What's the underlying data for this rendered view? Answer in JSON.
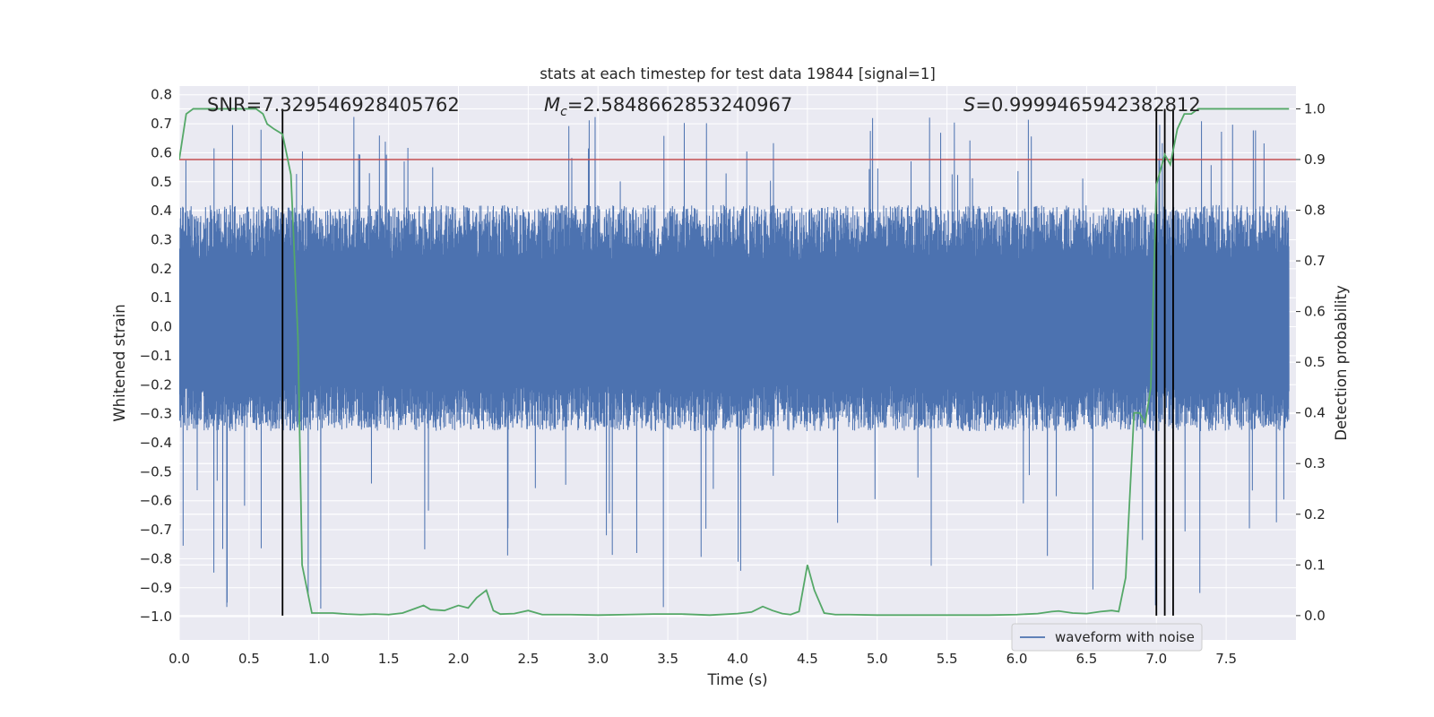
{
  "chart_data": {
    "type": "line",
    "title": "stats at each timestep for test data 19844 [signal=1]",
    "xlabel": "Time (s)",
    "ylabel": "Whitened strain",
    "y2label": "Detection probability",
    "xlim": [
      0,
      8
    ],
    "ylim": [
      -1.08,
      0.83
    ],
    "y2lim": [
      -0.048,
      1.045
    ],
    "xticks": [
      0.0,
      0.5,
      1.0,
      1.5,
      2.0,
      2.5,
      3.0,
      3.5,
      4.0,
      4.5,
      5.0,
      5.5,
      6.0,
      6.5,
      7.0,
      7.5
    ],
    "xtick_labels": [
      "0.0",
      "0.5",
      "1.0",
      "1.5",
      "2.0",
      "2.5",
      "3.0",
      "3.5",
      "4.0",
      "4.5",
      "5.0",
      "5.5",
      "6.0",
      "6.5",
      "7.0",
      "7.5"
    ],
    "yticks": [
      0.8,
      0.7,
      0.6,
      0.5,
      0.4,
      0.3,
      0.2,
      0.1,
      0.0,
      -0.1,
      -0.2,
      -0.3,
      -0.4,
      -0.5,
      -0.6,
      -0.7,
      -0.8,
      -0.9,
      -1.0
    ],
    "ytick_labels": [
      "0.8",
      "0.7",
      "0.6",
      "0.5",
      "0.4",
      "0.3",
      "0.2",
      "0.1",
      "0.0",
      "−0.1",
      "−0.2",
      "−0.3",
      "−0.4",
      "−0.5",
      "−0.6",
      "−0.7",
      "−0.8",
      "−0.9",
      "−1.0"
    ],
    "y2ticks": [
      1.0,
      0.9,
      0.8,
      0.7,
      0.6,
      0.5,
      0.4,
      0.3,
      0.2,
      0.1,
      0.0
    ],
    "y2tick_labels": [
      "1.0",
      "0.9",
      "0.8",
      "0.7",
      "0.6",
      "0.5",
      "0.4",
      "0.3",
      "0.2",
      "0.1",
      "0.0"
    ],
    "grid": true,
    "legend": {
      "position": "lower-right",
      "entries": [
        "waveform with noise"
      ]
    },
    "annotations": {
      "snr": "SNR=7.329546928405762",
      "mc_symbol": "M",
      "mc_sub": "c",
      "mc_value": "=2.5848662853240967",
      "s_symbol": "S",
      "s_value": "=0.9999465942382812"
    },
    "threshold_line": {
      "y2": 0.9,
      "color": "#c44e52"
    },
    "vlines": [
      0.74,
      7.0,
      7.06,
      7.12
    ],
    "vline_y2_range": [
      0.0,
      1.0
    ],
    "series": [
      {
        "name": "waveform with noise",
        "axis": "left",
        "color": "#4c72b0",
        "noise_seed": 19844,
        "samples": 6000,
        "envelope": {
          "upper": 0.42,
          "lower": -0.36,
          "spike_max": 0.73,
          "spike_min": -1.0
        }
      },
      {
        "axis": "right",
        "color": "#55a868",
        "x": [
          0.0,
          0.05,
          0.1,
          0.2,
          0.3,
          0.4,
          0.5,
          0.55,
          0.6,
          0.63,
          0.68,
          0.74,
          0.8,
          0.85,
          0.88,
          0.95,
          1.0,
          1.1,
          1.2,
          1.3,
          1.4,
          1.5,
          1.6,
          1.7,
          1.75,
          1.8,
          1.9,
          2.0,
          2.07,
          2.13,
          2.2,
          2.25,
          2.3,
          2.4,
          2.5,
          2.6,
          2.8,
          3.0,
          3.2,
          3.4,
          3.6,
          3.8,
          4.0,
          4.1,
          4.18,
          4.25,
          4.32,
          4.38,
          4.44,
          4.5,
          4.55,
          4.62,
          4.7,
          4.8,
          5.0,
          5.2,
          5.5,
          5.8,
          6.0,
          6.15,
          6.25,
          6.3,
          6.4,
          6.5,
          6.6,
          6.68,
          6.73,
          6.78,
          6.84,
          6.88,
          6.92,
          6.96,
          7.0,
          7.06,
          7.1,
          7.15,
          7.2,
          7.25,
          7.3,
          7.4,
          7.5,
          7.7,
          7.8,
          7.95
        ],
        "y": [
          0.9,
          0.99,
          1.0,
          1.0,
          1.0,
          1.0,
          1.0,
          1.0,
          0.99,
          0.97,
          0.96,
          0.95,
          0.87,
          0.55,
          0.1,
          0.005,
          0.005,
          0.005,
          0.003,
          0.002,
          0.003,
          0.002,
          0.005,
          0.015,
          0.02,
          0.012,
          0.01,
          0.02,
          0.015,
          0.035,
          0.05,
          0.01,
          0.003,
          0.004,
          0.01,
          0.002,
          0.002,
          0.001,
          0.002,
          0.003,
          0.003,
          0.001,
          0.004,
          0.007,
          0.018,
          0.01,
          0.004,
          0.002,
          0.008,
          0.1,
          0.05,
          0.005,
          0.002,
          0.002,
          0.001,
          0.001,
          0.001,
          0.001,
          0.002,
          0.004,
          0.008,
          0.009,
          0.005,
          0.004,
          0.008,
          0.01,
          0.008,
          0.075,
          0.4,
          0.4,
          0.38,
          0.45,
          0.85,
          0.91,
          0.89,
          0.96,
          0.99,
          0.99,
          1.0,
          1.0,
          1.0,
          1.0,
          1.0,
          1.0
        ]
      }
    ]
  }
}
